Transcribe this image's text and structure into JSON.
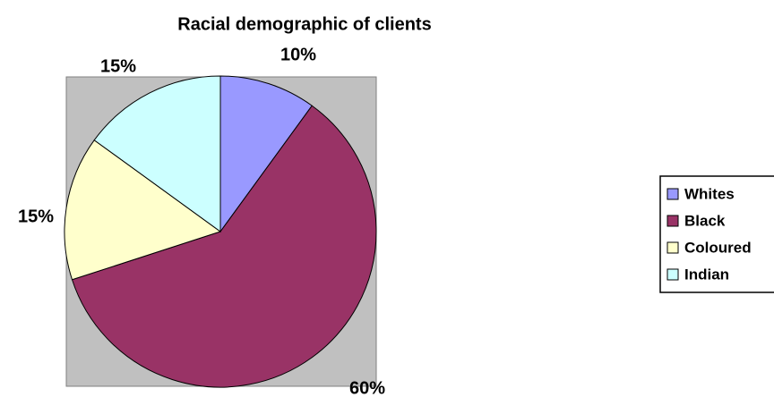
{
  "chart_data": {
    "type": "pie",
    "title": "Racial demographic of clients",
    "categories": [
      "Whites",
      "Black",
      "Coloured",
      "Indian"
    ],
    "values": [
      10,
      60,
      15,
      15
    ],
    "value_labels": [
      "10%",
      "60%",
      "15%",
      "15%"
    ],
    "colors": [
      "#9999ff",
      "#993366",
      "#ffffcc",
      "#ccffff"
    ],
    "legend": "right"
  }
}
